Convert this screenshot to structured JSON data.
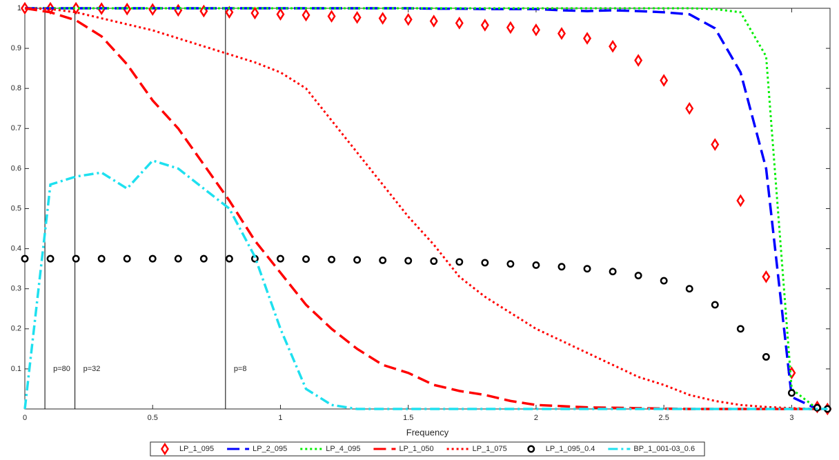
{
  "chart_data": {
    "type": "line",
    "x_label": "Frequency",
    "xlim": [
      0,
      3.15
    ],
    "ylim": [
      0,
      1
    ],
    "xticks": [
      0,
      0.5,
      1,
      1.5,
      2,
      2.5,
      3
    ],
    "yticks": [
      0.1,
      0.2,
      0.3,
      0.4,
      0.5,
      0.6,
      0.7,
      0.8,
      0.9,
      1
    ],
    "legend": "bottom",
    "vlines": [
      {
        "x": 0.0785,
        "label": "p=80"
      },
      {
        "x": 0.196,
        "label": "p=32"
      },
      {
        "x": 0.785,
        "label": "p=8"
      }
    ],
    "x": [
      0,
      0.1,
      0.2,
      0.3,
      0.4,
      0.5,
      0.6,
      0.7,
      0.8,
      0.9,
      1,
      1.1,
      1.2,
      1.3,
      1.4,
      1.5,
      1.6,
      1.7,
      1.8,
      1.9,
      2,
      2.1,
      2.2,
      2.3,
      2.4,
      2.5,
      2.6,
      2.7,
      2.8,
      2.9,
      3,
      3.1,
      3.14
    ],
    "series": [
      {
        "name": "LP_1_095",
        "color": "#ff0000",
        "style": "none",
        "marker": "diamond",
        "values": [
          1,
          1,
          1,
          0.999,
          0.998,
          0.997,
          0.995,
          0.993,
          0.99,
          0.988,
          0.985,
          0.983,
          0.98,
          0.977,
          0.975,
          0.972,
          0.968,
          0.963,
          0.958,
          0.952,
          0.946,
          0.937,
          0.925,
          0.905,
          0.87,
          0.82,
          0.75,
          0.66,
          0.52,
          0.33,
          0.09,
          0.005,
          0
        ]
      },
      {
        "name": "LP_2_095",
        "color": "#0000ff",
        "style": "dashed",
        "marker": "none",
        "values": [
          1,
          1,
          1,
          1,
          1,
          1,
          1,
          1,
          1,
          1,
          1,
          1,
          1,
          1,
          1,
          1,
          0.999,
          0.999,
          0.998,
          0.998,
          0.998,
          0.995,
          0.993,
          0.995,
          0.993,
          0.99,
          0.985,
          0.95,
          0.84,
          0.6,
          0.03,
          0,
          0
        ]
      },
      {
        "name": "LP_4_095",
        "color": "#00ee00",
        "style": "dotted",
        "marker": "none",
        "values": [
          1,
          1,
          1,
          1,
          1,
          1,
          1,
          1,
          1,
          1,
          1,
          1,
          1,
          1,
          1,
          1,
          1,
          1,
          1,
          1,
          1,
          1,
          1,
          1,
          1,
          1,
          1,
          0.998,
          0.99,
          0.88,
          0.05,
          0,
          0
        ]
      },
      {
        "name": "LP_1_050",
        "color": "#ff0000",
        "style": "dashed",
        "marker": "none",
        "values": [
          1,
          0.99,
          0.97,
          0.93,
          0.86,
          0.77,
          0.7,
          0.61,
          0.52,
          0.42,
          0.34,
          0.26,
          0.2,
          0.15,
          0.11,
          0.09,
          0.06,
          0.045,
          0.035,
          0.02,
          0.01,
          0.007,
          0.004,
          0.003,
          0.002,
          0.001,
          0,
          0,
          0,
          0,
          0,
          0,
          0
        ]
      },
      {
        "name": "LP_1_075",
        "color": "#ff0000",
        "style": "dotted",
        "marker": "none",
        "values": [
          1,
          0.998,
          0.99,
          0.975,
          0.96,
          0.945,
          0.925,
          0.905,
          0.885,
          0.865,
          0.84,
          0.8,
          0.72,
          0.64,
          0.56,
          0.48,
          0.41,
          0.33,
          0.28,
          0.24,
          0.2,
          0.17,
          0.14,
          0.11,
          0.08,
          0.06,
          0.035,
          0.02,
          0.01,
          0.005,
          0.002,
          0,
          0
        ]
      },
      {
        "name": "LP_1_095_0.4",
        "color": "#000000",
        "style": "none",
        "marker": "circle",
        "values": [
          0.375,
          0.375,
          0.375,
          0.375,
          0.375,
          0.375,
          0.375,
          0.375,
          0.375,
          0.375,
          0.375,
          0.374,
          0.373,
          0.372,
          0.371,
          0.37,
          0.369,
          0.367,
          0.365,
          0.362,
          0.359,
          0.355,
          0.35,
          0.343,
          0.333,
          0.32,
          0.3,
          0.26,
          0.2,
          0.13,
          0.04,
          0.003,
          0
        ]
      },
      {
        "name": "BP_1_001-03_0.6",
        "color": "#1ee0ef",
        "style": "dashdot",
        "marker": "none",
        "values": [
          0,
          0.56,
          0.58,
          0.59,
          0.55,
          0.62,
          0.6,
          0.55,
          0.5,
          0.38,
          0.2,
          0.05,
          0.01,
          0,
          0,
          0,
          0,
          0,
          0,
          0,
          0,
          0,
          0,
          0,
          0,
          0,
          0,
          0,
          0,
          0,
          0,
          0,
          0
        ]
      }
    ]
  }
}
